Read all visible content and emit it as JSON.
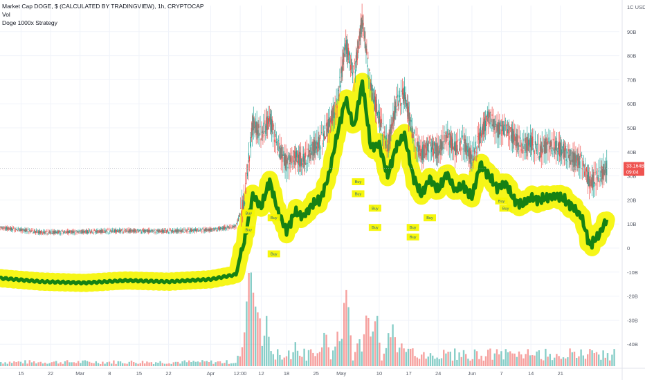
{
  "legend": {
    "line1": "Market Cap DOGE, $ (CALCULATED BY TRADINGVIEW), 1h, CRYPTOCAP",
    "line2": "Vol",
    "line3": "Doge 1000x Strategy"
  },
  "colors": {
    "up": "#26a69a",
    "down": "#ef5350",
    "strategy_line": "#0a7a14",
    "strategy_glow": "#f5f500",
    "price_tag": "#ef5350",
    "buy_box": "#f5f500"
  },
  "price_tag": {
    "value": "33.164B",
    "countdown": "09:04"
  },
  "chart_data": {
    "type": "line",
    "title": "Market Cap DOGE, $ (CALCULATED BY TRADINGVIEW), 1h, CRYPTOCAP",
    "y_unit": "USD",
    "y_axis_top_label": "1C USD",
    "y_ticks": [
      "90B",
      "80B",
      "70B",
      "60B",
      "50B",
      "40B",
      "30B",
      "20B",
      "10B",
      "0",
      "-10B",
      "-20B",
      "-30B",
      "-40B"
    ],
    "y_tick_values": [
      90,
      80,
      70,
      60,
      50,
      40,
      30,
      20,
      10,
      0,
      -10,
      -20,
      -30,
      -40
    ],
    "ylim": [
      -45,
      100
    ],
    "x_ticks": [
      "15",
      "22",
      "Mar",
      "8",
      "15",
      "22",
      "Apr",
      "12:00",
      "12",
      "18",
      "25",
      "May",
      "10",
      "17",
      "24",
      "Jun",
      "7",
      "14",
      "21"
    ],
    "x_tick_days": [
      15,
      22,
      29,
      36,
      43,
      50,
      60,
      67,
      72,
      78,
      85,
      91,
      100,
      107,
      114,
      122,
      129,
      136,
      143
    ],
    "xlim": [
      10,
      157
    ],
    "series": [
      {
        "name": "Market Cap",
        "x": [
          10,
          20,
          30,
          40,
          50,
          60,
          66,
          68,
          70,
          72,
          74,
          76,
          78,
          80,
          82,
          84,
          86,
          88,
          90,
          92,
          94,
          96,
          98,
          100,
          102,
          104,
          106,
          108,
          110,
          112,
          114,
          116,
          118,
          120,
          122,
          124,
          126,
          128,
          130,
          132,
          134,
          136,
          138,
          140,
          142,
          144,
          146,
          148,
          150,
          152,
          154
        ],
        "values": [
          8.5,
          6.5,
          6.8,
          7.2,
          7.0,
          7.6,
          9,
          20,
          52,
          47,
          54,
          42,
          35,
          38,
          36,
          41,
          44,
          51,
          60,
          85,
          72,
          95,
          67,
          54,
          42,
          60,
          64,
          47,
          39,
          43,
          40,
          47,
          41,
          44,
          37,
          47,
          55,
          49,
          50,
          46,
          42,
          44,
          40,
          43,
          42,
          40,
          37,
          36,
          27,
          30,
          33.2
        ]
      },
      {
        "name": "Doge 1000x Strategy",
        "x": [
          10,
          20,
          30,
          40,
          50,
          60,
          66,
          68,
          70,
          72,
          74,
          76,
          78,
          80,
          82,
          84,
          86,
          88,
          90,
          92,
          94,
          96,
          98,
          100,
          102,
          104,
          106,
          108,
          110,
          112,
          114,
          116,
          118,
          120,
          122,
          124,
          126,
          128,
          130,
          132,
          134,
          136,
          138,
          140,
          142,
          144,
          146,
          148,
          150,
          152,
          154
        ],
        "values": [
          -12.5,
          -14,
          -14.5,
          -13.5,
          -14,
          -13,
          -11,
          3,
          22,
          17,
          28,
          15,
          7,
          15,
          13,
          18,
          20,
          30,
          47,
          62,
          50,
          69,
          42,
          43,
          30,
          42,
          47,
          30,
          22,
          29,
          24,
          31,
          24,
          26,
          21,
          35,
          30,
          25,
          27,
          20,
          18,
          21,
          20,
          21,
          22,
          20,
          17,
          13,
          1,
          5,
          12
        ]
      }
    ],
    "buy_labels": [
      "Buy",
      "Buy",
      "Buy",
      "Buy",
      "Buy",
      "Buy",
      "Buy",
      "Buy",
      "Buy",
      "Buy",
      "Buy",
      "Buy",
      "Buy"
    ],
    "buy_x": [
      69,
      69,
      75,
      75,
      95,
      95,
      99,
      99,
      108,
      108,
      112,
      129,
      130
    ],
    "buy_values": [
      14,
      7,
      12,
      -3,
      27,
      22,
      16,
      8,
      8,
      4,
      12,
      19,
      16
    ],
    "volume": {
      "x_range": [
        10,
        156
      ],
      "spike_days": [
        68,
        69,
        70,
        71,
        73,
        80,
        87,
        90,
        92,
        95,
        97,
        99,
        102,
        103,
        105,
        107,
        120,
        133,
        146,
        153
      ],
      "spike_heights": [
        60,
        170,
        110,
        92,
        70,
        38,
        60,
        52,
        135,
        40,
        95,
        88,
        48,
        60,
        40,
        30,
        22,
        16,
        14,
        12
      ]
    }
  }
}
